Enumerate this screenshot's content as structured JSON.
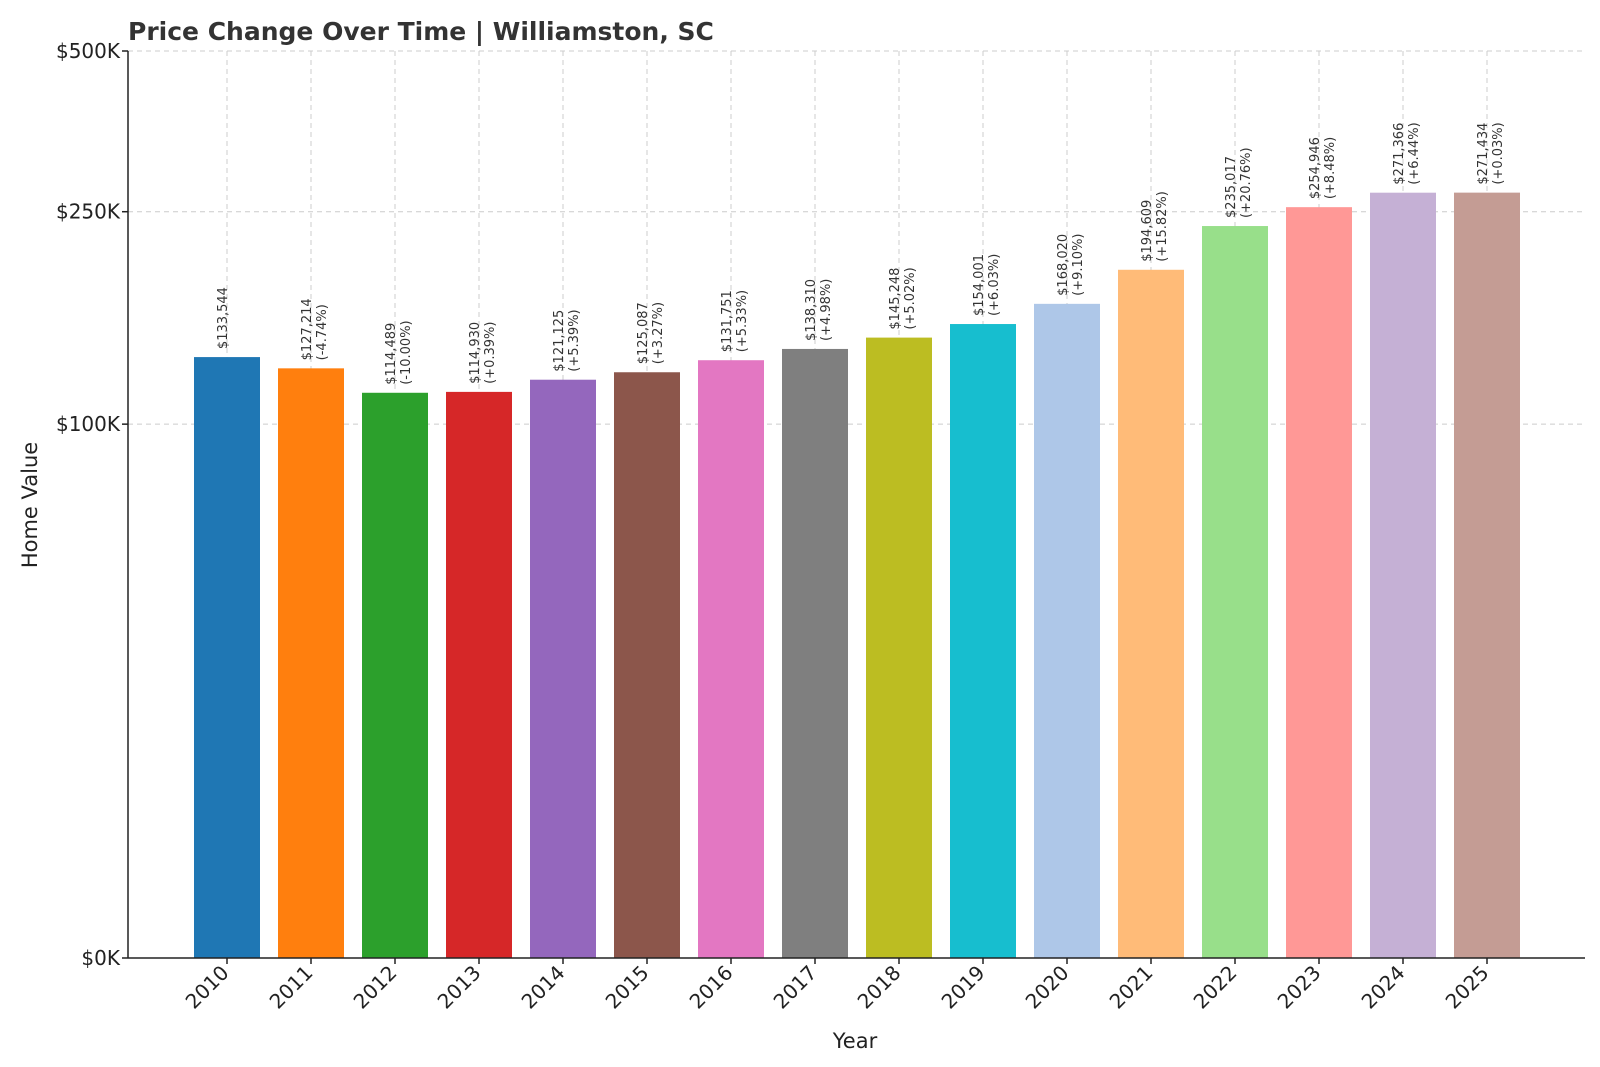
{
  "chart_data": {
    "type": "bar",
    "title": "Price Change Over Time | Williamston, SC",
    "xlabel": "Year",
    "ylabel": "Home Value",
    "categories": [
      "2010",
      "2011",
      "2012",
      "2013",
      "2014",
      "2015",
      "2016",
      "2017",
      "2018",
      "2019",
      "2020",
      "2021",
      "2022",
      "2023",
      "2024",
      "2025"
    ],
    "values": [
      133544,
      127214,
      114489,
      114930,
      121125,
      125087,
      131751,
      138310,
      145248,
      154001,
      168020,
      194609,
      235017,
      254946,
      271366,
      271434
    ],
    "value_labels": [
      "$133,544",
      "$127,214",
      "$114,489",
      "$114,930",
      "$121,125",
      "$125,087",
      "$131,751",
      "$138,310",
      "$145,248",
      "$154,001",
      "$168,020",
      "$194,609",
      "$235,017",
      "$254,946",
      "$271,366",
      "$271,434"
    ],
    "change_labels": [
      "",
      "(-4.74%)",
      "(-10.00%)",
      "(+0.39%)",
      "(+5.39%)",
      "(+3.27%)",
      "(+5.33%)",
      "(+4.98%)",
      "(+5.02%)",
      "(+6.03%)",
      "(+9.10%)",
      "(+15.82%)",
      "(+20.76%)",
      "(+8.48%)",
      "(+6.44%)",
      "(+0.03%)"
    ],
    "colors": [
      "#1f77b4",
      "#ff7f0e",
      "#2ca02c",
      "#d62728",
      "#9467bd",
      "#8c564b",
      "#e377c2",
      "#7f7f7f",
      "#bcbd22",
      "#17becf",
      "#aec7e8",
      "#ffbb78",
      "#98df8a",
      "#ff9896",
      "#c5b0d5",
      "#c49c94"
    ],
    "yscale": "symlog",
    "ylim": [
      0,
      500000
    ],
    "yticks": [
      0,
      100000,
      250000,
      500000
    ],
    "ytick_labels": [
      "$0K",
      "$100K",
      "$250K",
      "$500K"
    ],
    "grid": true
  }
}
